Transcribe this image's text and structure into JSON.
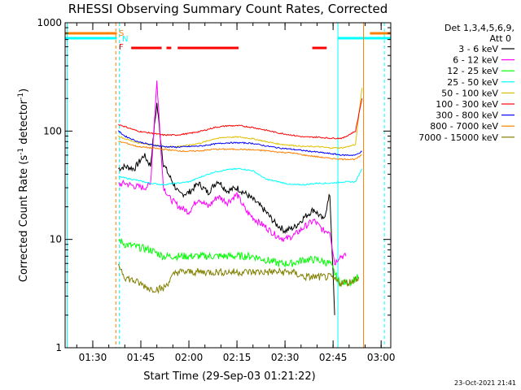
{
  "chart_data": {
    "type": "line",
    "title": "RHESSI Observing Summary Count Rates, Corrected",
    "xlabel": "Start Time (29-Sep-03 01:21:22)",
    "ylabel_main": "Corrected Count Rate (s",
    "ylabel_exp1": "-1",
    "ylabel_mid": " detector",
    "ylabel_exp2": "-1",
    "ylabel_end": ")",
    "y_scale": "log",
    "ylim": [
      1,
      1000
    ],
    "y_ticks": [
      1,
      10,
      100,
      1000
    ],
    "y_tick_labels": [
      "1",
      "10",
      "100",
      "1000"
    ],
    "xlim_minutes": [
      81.37,
      183
    ],
    "x_ticks_minutes": [
      90,
      105,
      120,
      135,
      150,
      165,
      180
    ],
    "x_tick_labels": [
      "01:30",
      "01:45",
      "02:00",
      "02:15",
      "02:30",
      "02:45",
      "03:00"
    ],
    "legend": {
      "header": [
        "Det 1,3,4,5,6,9,",
        "Att 0"
      ],
      "placement": "right",
      "entries": [
        {
          "label": "3 - 6 keV",
          "color": "#000000"
        },
        {
          "label": "6 - 12 keV",
          "color": "#ff00ff"
        },
        {
          "label": "12 - 25 keV",
          "color": "#00ff00"
        },
        {
          "label": "25 - 50 keV",
          "color": "#00ffff"
        },
        {
          "label": "50 - 100 keV",
          "color": "#e0c000"
        },
        {
          "label": "100 - 300 keV",
          "color": "#ff0000"
        },
        {
          "label": "300 - 800 keV",
          "color": "#0000ff"
        },
        {
          "label": "800 - 7000 keV",
          "color": "#ff8000"
        },
        {
          "label": "7000 - 15000 keV",
          "color": "#808000"
        }
      ]
    },
    "flag_labels": [
      {
        "letter": "S",
        "color": "#ff8000"
      },
      {
        "letter": "N",
        "color": "#00ffff"
      },
      {
        "letter": "F",
        "color": "#ff0000"
      }
    ],
    "flags": {
      "saa": [
        [
          81.37,
          97.5
        ],
        [
          176.5,
          183
        ]
      ],
      "night": [
        [
          81.37,
          97.5
        ],
        [
          166.5,
          183
        ]
      ],
      "flare": [
        [
          102,
          111.5
        ],
        [
          113,
          114.5
        ],
        [
          116.5,
          135.5
        ],
        [
          158.5,
          163
        ]
      ]
    },
    "vertical_lines": [
      {
        "t": 97.2,
        "color": "#ff8000",
        "style": "dashed"
      },
      {
        "t": 98.3,
        "color": "#00ffff",
        "style": "dashed"
      },
      {
        "t": 166.5,
        "color": "#00ffff",
        "style": "solid"
      },
      {
        "t": 174.5,
        "color": "#ff8000",
        "style": "solid"
      },
      {
        "t": 181.0,
        "color": "#00ffff",
        "style": "dashed"
      },
      {
        "t": 82.0,
        "color": "#00ffff",
        "style": "solid"
      }
    ],
    "series": [
      {
        "name": "3 - 6 keV",
        "color": "#000000",
        "t": [
          98,
          100,
          103,
          106,
          108,
          110,
          112,
          114,
          117,
          120,
          123,
          126,
          129,
          132,
          135,
          138,
          141,
          144,
          147,
          150,
          153,
          156,
          159,
          162,
          164,
          165.5
        ],
        "values": [
          45,
          47,
          45,
          60,
          48,
          180,
          50,
          38,
          26,
          27,
          33,
          27,
          35,
          28,
          30,
          26,
          22,
          18,
          14,
          12,
          13,
          16,
          19,
          15,
          26,
          2
        ]
      },
      {
        "name": "6 - 12 keV",
        "color": "#ff00ff",
        "t": [
          98,
          100,
          103,
          106,
          108,
          110,
          112,
          114,
          117,
          120,
          123,
          126,
          129,
          132,
          135,
          138,
          141,
          144,
          147,
          150,
          153,
          156,
          159,
          162,
          164,
          165.5,
          167,
          169
        ],
        "values": [
          32,
          33,
          31,
          30,
          32,
          290,
          31,
          24,
          20,
          18,
          24,
          20,
          25,
          22,
          26,
          18,
          15,
          13,
          11,
          10,
          11,
          13,
          15,
          12,
          12,
          6,
          7,
          7
        ]
      },
      {
        "name": "12 - 25 keV",
        "color": "#00ff00",
        "t": [
          98,
          100,
          104,
          108,
          112,
          116,
          120,
          124,
          128,
          132,
          136,
          140,
          144,
          148,
          152,
          156,
          160,
          164,
          167,
          170,
          173
        ],
        "values": [
          10,
          9,
          8.5,
          8,
          7,
          7,
          7,
          7,
          7,
          7,
          7,
          7,
          6.5,
          6,
          6,
          6.5,
          6.5,
          6,
          4,
          4,
          4.5
        ]
      },
      {
        "name": "25 - 50 keV",
        "color": "#00ffff",
        "t": [
          98,
          100,
          104,
          108,
          112,
          116,
          120,
          124,
          128,
          132,
          136,
          140,
          144,
          148,
          152,
          156,
          160,
          164,
          168,
          172,
          174
        ],
        "values": [
          38,
          37,
          35,
          33,
          32,
          33,
          34,
          38,
          42,
          44,
          45,
          43,
          36,
          34,
          32,
          32,
          33,
          33,
          34,
          34,
          45
        ]
      },
      {
        "name": "50 - 100 keV",
        "color": "#e0c000",
        "t": [
          98,
          100,
          104,
          108,
          112,
          116,
          120,
          124,
          128,
          132,
          136,
          140,
          144,
          148,
          152,
          156,
          160,
          164,
          168,
          172,
          174
        ],
        "values": [
          90,
          85,
          78,
          75,
          72,
          72,
          74,
          78,
          85,
          88,
          88,
          85,
          80,
          76,
          74,
          72,
          72,
          70,
          70,
          75,
          250
        ]
      },
      {
        "name": "100 - 300 keV",
        "color": "#ff0000",
        "t": [
          98,
          100,
          104,
          108,
          112,
          116,
          120,
          124,
          128,
          132,
          136,
          140,
          144,
          148,
          152,
          156,
          160,
          164,
          168,
          172,
          174
        ],
        "values": [
          115,
          110,
          100,
          96,
          92,
          92,
          95,
          100,
          108,
          112,
          112,
          108,
          102,
          96,
          92,
          88,
          88,
          86,
          86,
          100,
          200
        ]
      },
      {
        "name": "300 - 800 keV",
        "color": "#0000ff",
        "t": [
          98,
          100,
          104,
          108,
          112,
          116,
          120,
          124,
          128,
          132,
          136,
          140,
          144,
          148,
          152,
          156,
          160,
          164,
          168,
          172,
          174
        ],
        "values": [
          100,
          90,
          80,
          75,
          72,
          71,
          72,
          73,
          76,
          78,
          78,
          77,
          73,
          70,
          68,
          66,
          64,
          62,
          60,
          60,
          65
        ]
      },
      {
        "name": "800 - 7000 keV",
        "color": "#ff8000",
        "t": [
          98,
          100,
          104,
          108,
          112,
          116,
          120,
          124,
          128,
          132,
          136,
          140,
          144,
          148,
          152,
          156,
          160,
          164,
          168,
          172,
          174
        ],
        "values": [
          80,
          78,
          72,
          70,
          68,
          66,
          65,
          66,
          68,
          68,
          68,
          67,
          66,
          64,
          63,
          60,
          58,
          56,
          55,
          55,
          60
        ]
      },
      {
        "name": "7000 - 15000 keV",
        "color": "#808000",
        "t": [
          98,
          100,
          104,
          108,
          112,
          116,
          120,
          124,
          128,
          132,
          136,
          140,
          144,
          148,
          152,
          156,
          160,
          164,
          167,
          170,
          173
        ],
        "values": [
          6,
          4.5,
          4,
          3.5,
          3.5,
          5,
          5,
          5,
          5,
          5,
          5,
          5,
          5,
          5,
          5,
          4.5,
          4.5,
          4.5,
          4,
          4,
          4.5
        ]
      }
    ]
  },
  "footer": {
    "date": "23-Oct-2021 21:41"
  }
}
